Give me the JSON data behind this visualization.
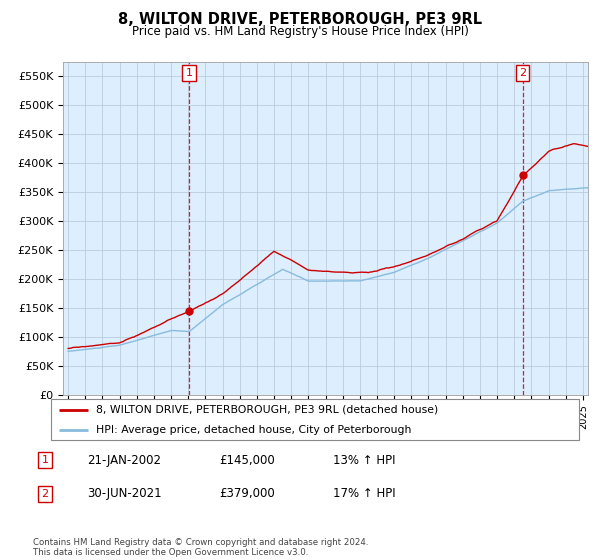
{
  "title": "8, WILTON DRIVE, PETERBOROUGH, PE3 9RL",
  "subtitle": "Price paid vs. HM Land Registry's House Price Index (HPI)",
  "legend_line1": "8, WILTON DRIVE, PETERBOROUGH, PE3 9RL (detached house)",
  "legend_line2": "HPI: Average price, detached house, City of Peterborough",
  "annotation1_label": "1",
  "annotation1_date": "21-JAN-2002",
  "annotation1_price": "£145,000",
  "annotation1_hpi": "13% ↑ HPI",
  "annotation2_label": "2",
  "annotation2_date": "30-JUN-2021",
  "annotation2_price": "£379,000",
  "annotation2_hpi": "17% ↑ HPI",
  "footnote": "Contains HM Land Registry data © Crown copyright and database right 2024.\nThis data is licensed under the Open Government Licence v3.0.",
  "line_color_red": "#cc0000",
  "line_color_blue": "#88bbdd",
  "vline_color": "#cc0000",
  "plot_bg_color": "#ddeeff",
  "grid_color": "#bbccdd",
  "ylim": [
    0,
    575000
  ],
  "yticks": [
    0,
    50000,
    100000,
    150000,
    200000,
    250000,
    300000,
    350000,
    400000,
    450000,
    500000,
    550000
  ],
  "sale1_x": 2002.05,
  "sale1_y": 145000,
  "sale2_x": 2021.5,
  "sale2_y": 379000,
  "xmin": 1994.7,
  "xmax": 2025.3
}
